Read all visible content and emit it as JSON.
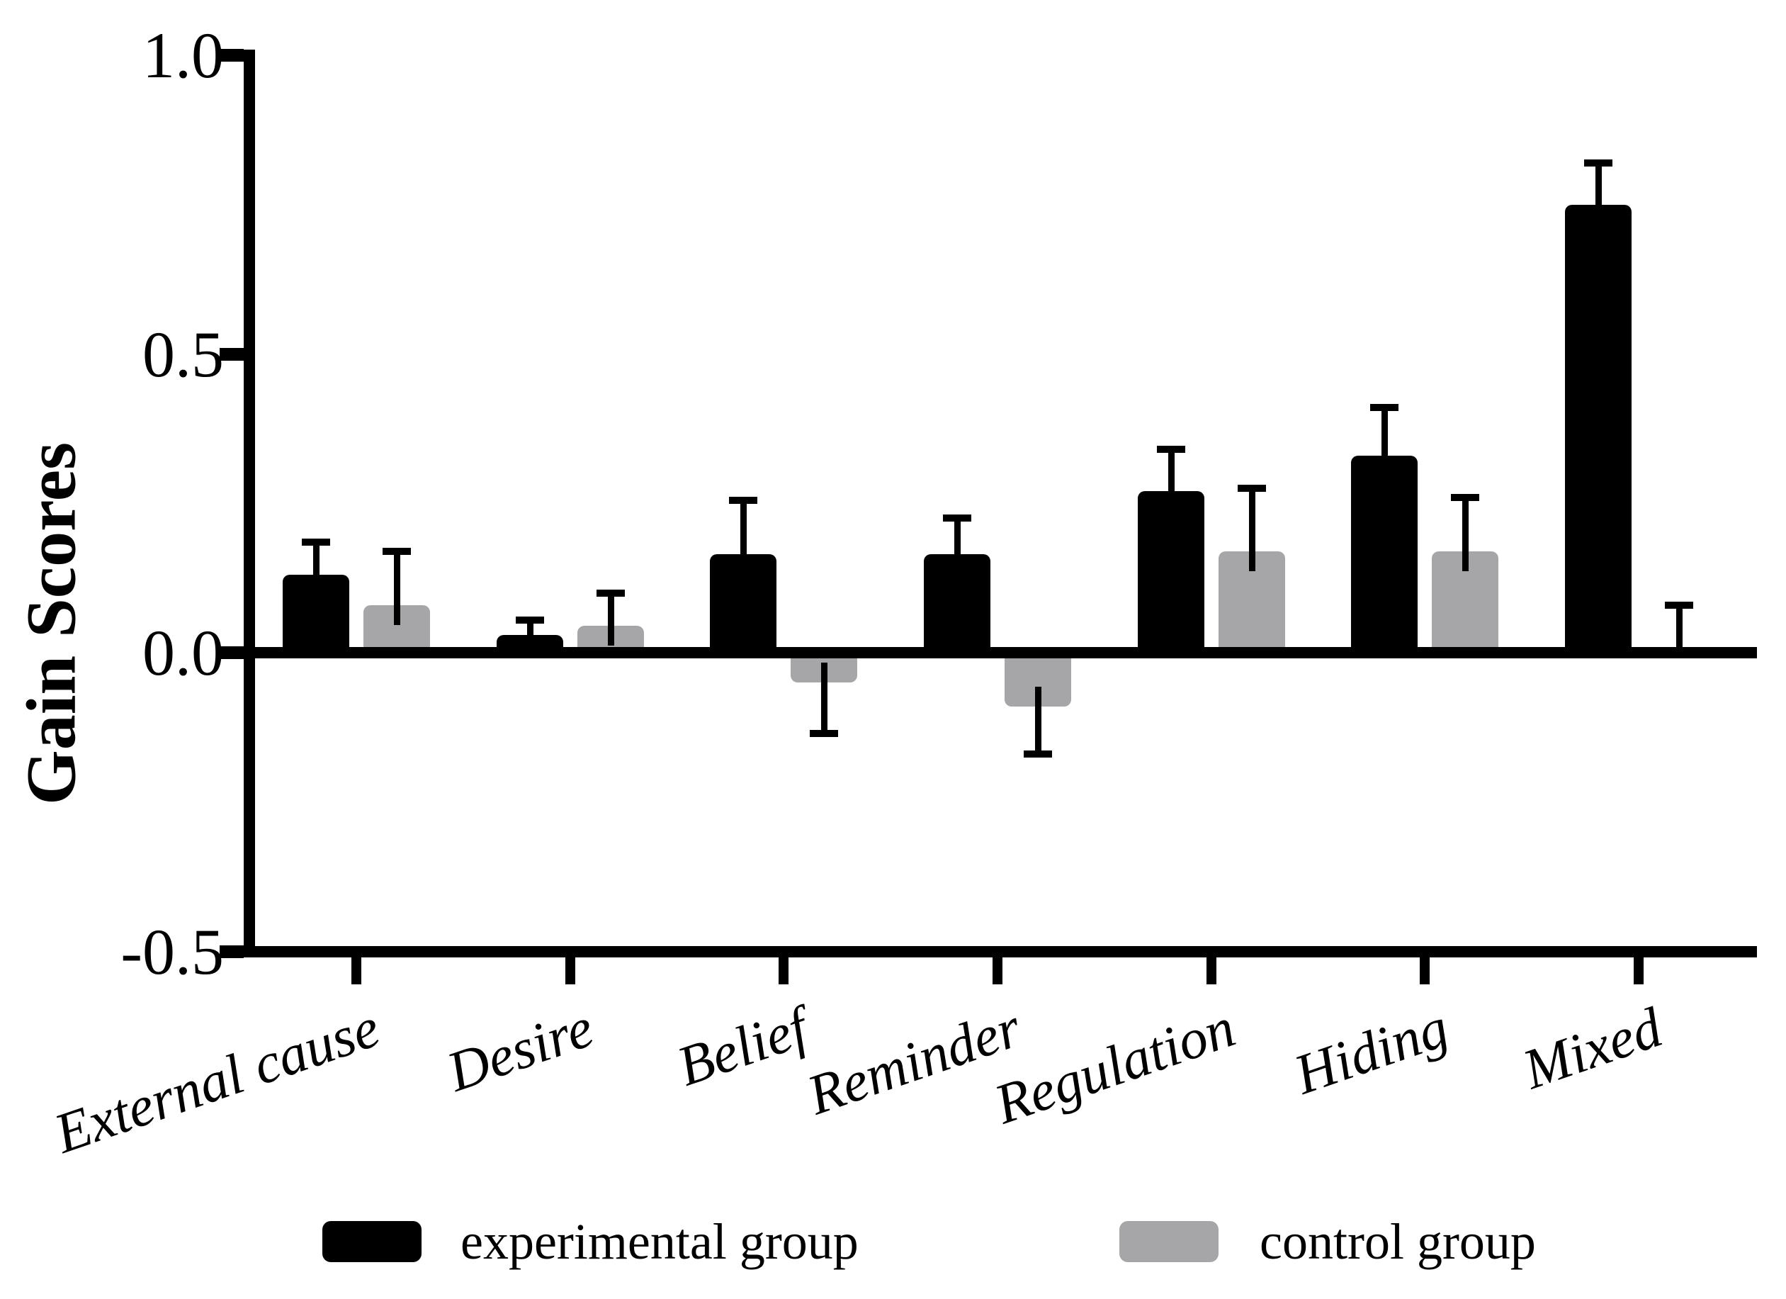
{
  "chart_data": {
    "type": "bar",
    "title": "",
    "ylabel": "Gain Scores",
    "xlabel": "",
    "categories": [
      "External cause",
      "Desire",
      "Belief",
      "Reminder",
      "Regulation",
      "Hiding",
      "Mixed"
    ],
    "series": [
      {
        "name": "experimental group",
        "color": "#000000",
        "values": [
          0.13,
          0.03,
          0.165,
          0.165,
          0.27,
          0.33,
          0.75
        ],
        "errors": [
          0.055,
          0.025,
          0.09,
          0.06,
          0.07,
          0.08,
          0.07
        ]
      },
      {
        "name": "control group",
        "color": "#a6a6a9",
        "values": [
          0.08,
          0.045,
          -0.05,
          -0.09,
          0.17,
          0.17,
          0.0
        ],
        "errors": [
          0.09,
          0.055,
          0.085,
          0.08,
          0.105,
          0.09,
          0.08
        ]
      }
    ],
    "yticks": [
      {
        "value": 1.0,
        "label": "1.0"
      },
      {
        "value": 0.5,
        "label": "0.5"
      },
      {
        "value": 0.0,
        "label": "0.0"
      },
      {
        "value": -0.5,
        "label": "-0.5"
      }
    ],
    "ylim": [
      -0.5,
      1.0
    ],
    "grid": false,
    "legend_position": "bottom",
    "error_bar_style": "one-sided whiskers pointing away from zero with end caps"
  }
}
